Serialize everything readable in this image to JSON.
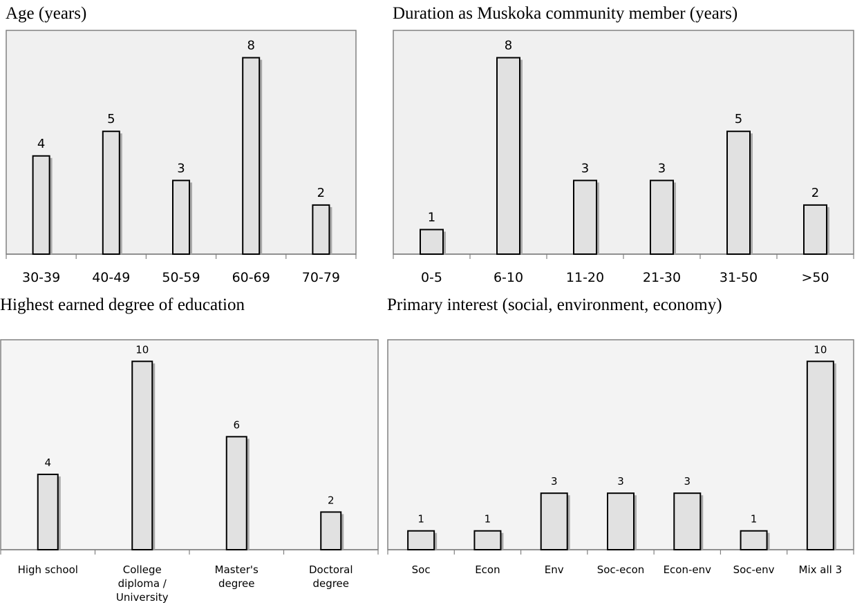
{
  "chart_data": [
    {
      "type": "bar",
      "title": "Age (years)",
      "categories": [
        "30-39",
        "40-49",
        "50-59",
        "60-69",
        "70-79"
      ],
      "values": [
        4,
        5,
        3,
        8,
        2
      ],
      "ylim": [
        0,
        9
      ],
      "grid": false,
      "background": "#f0f0f0"
    },
    {
      "type": "bar",
      "title": "Duration as Muskoka community member (years)",
      "categories": [
        "0-5",
        "6-10",
        "11-20",
        "21-30",
        "31-50",
        ">50"
      ],
      "values": [
        1,
        8,
        3,
        3,
        5,
        2
      ],
      "ylim": [
        0,
        9
      ],
      "grid": false,
      "background": "#f0f0f0"
    },
    {
      "type": "bar",
      "title": "Highest earned degree of education",
      "categories": [
        "High school",
        "College diploma / University",
        "Master's degree",
        "Doctoral degree"
      ],
      "values": [
        4,
        10,
        6,
        2
      ],
      "ylim": [
        0,
        11
      ],
      "grid": false,
      "background": "#f5f5f5"
    },
    {
      "type": "bar",
      "title": "Primary interest (social, environment, economy)",
      "categories": [
        "Soc",
        "Econ",
        "Env",
        "Soc-econ",
        "Econ-env",
        "Soc-env",
        "Mix all 3"
      ],
      "values": [
        1,
        1,
        3,
        3,
        3,
        1,
        10
      ],
      "ylim": [
        0,
        11
      ],
      "grid": false,
      "background": "#f3f3f3"
    }
  ],
  "colors": {
    "bar_fill": "#e1e1e1",
    "bar_stroke": "#000000",
    "bar_shadow": "#a9a9a9",
    "frame": "#808080"
  }
}
